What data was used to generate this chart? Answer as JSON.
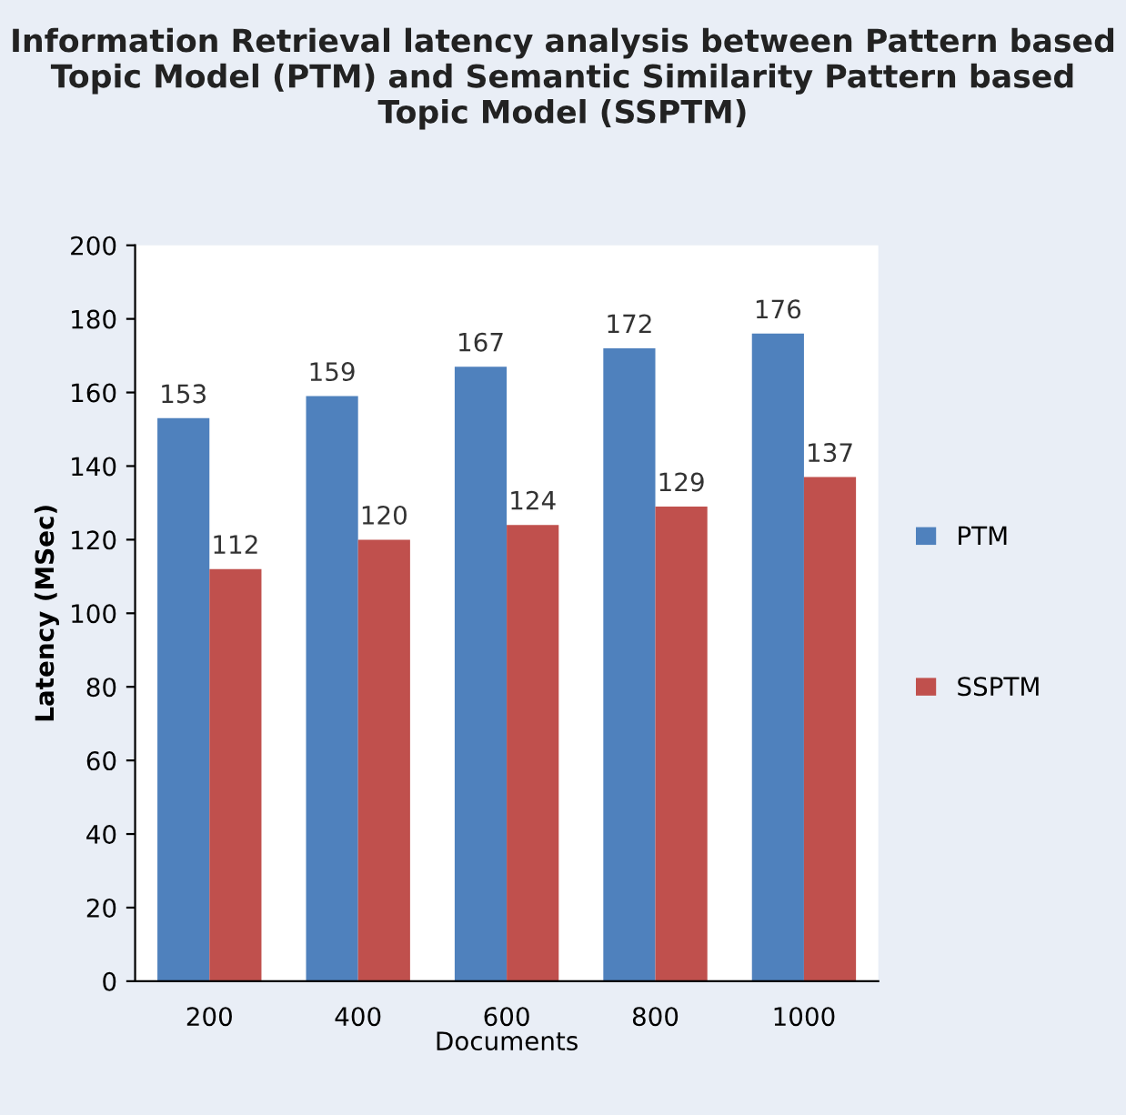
{
  "chart_data": {
    "type": "bar",
    "title": "Information Retrieval latency analysis between Pattern based Topic Model (PTM) and Semantic Similarity Pattern based Topic Model (SSPTM)",
    "xlabel": "Documents",
    "ylabel": "Latency (MSec)",
    "categories": [
      "200",
      "400",
      "600",
      "800",
      "1000"
    ],
    "series": [
      {
        "name": "PTM",
        "color": "#4f81bd",
        "values": [
          153,
          159,
          167,
          172,
          176
        ]
      },
      {
        "name": "SSPTM",
        "color": "#c0504d",
        "values": [
          112,
          120,
          124,
          129,
          137
        ]
      }
    ],
    "ylim": [
      0,
      200
    ],
    "yticks": [
      0,
      20,
      40,
      60,
      80,
      100,
      120,
      140,
      160,
      180,
      200
    ],
    "data_labels": true,
    "grid": false,
    "legend": "right"
  }
}
